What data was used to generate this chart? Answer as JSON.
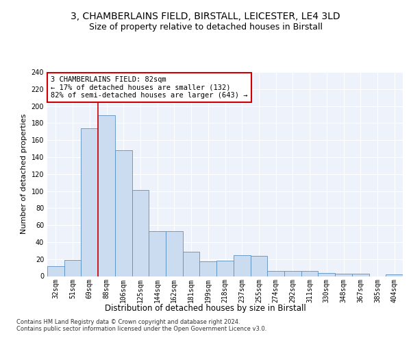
{
  "title1": "3, CHAMBERLAINS FIELD, BIRSTALL, LEICESTER, LE4 3LD",
  "title2": "Size of property relative to detached houses in Birstall",
  "xlabel": "Distribution of detached houses by size in Birstall",
  "ylabel": "Number of detached properties",
  "bar_color": "#ccdcf0",
  "bar_edge_color": "#5a8fc0",
  "bar_labels": [
    "32sqm",
    "51sqm",
    "69sqm",
    "88sqm",
    "106sqm",
    "125sqm",
    "144sqm",
    "162sqm",
    "181sqm",
    "199sqm",
    "218sqm",
    "237sqm",
    "255sqm",
    "274sqm",
    "292sqm",
    "311sqm",
    "330sqm",
    "348sqm",
    "367sqm",
    "385sqm",
    "404sqm"
  ],
  "bar_values": [
    12,
    19,
    174,
    189,
    148,
    101,
    53,
    53,
    29,
    17,
    18,
    25,
    24,
    6,
    6,
    6,
    4,
    3,
    3,
    0,
    2
  ],
  "vline_x": 2.5,
  "annotation_text": "3 CHAMBERLAINS FIELD: 82sqm\n← 17% of detached houses are smaller (132)\n82% of semi-detached houses are larger (643) →",
  "vline_color": "#cc0000",
  "annotation_box_edge": "#cc0000",
  "ylim": [
    0,
    240
  ],
  "yticks": [
    0,
    20,
    40,
    60,
    80,
    100,
    120,
    140,
    160,
    180,
    200,
    220,
    240
  ],
  "background_color": "#eef2fa",
  "grid_color": "#ffffff",
  "footer_text": "Contains HM Land Registry data © Crown copyright and database right 2024.\nContains public sector information licensed under the Open Government Licence v3.0.",
  "title1_fontsize": 10,
  "title2_fontsize": 9,
  "xlabel_fontsize": 8.5,
  "ylabel_fontsize": 8,
  "tick_fontsize": 7,
  "annotation_fontsize": 7.5,
  "footer_fontsize": 6
}
